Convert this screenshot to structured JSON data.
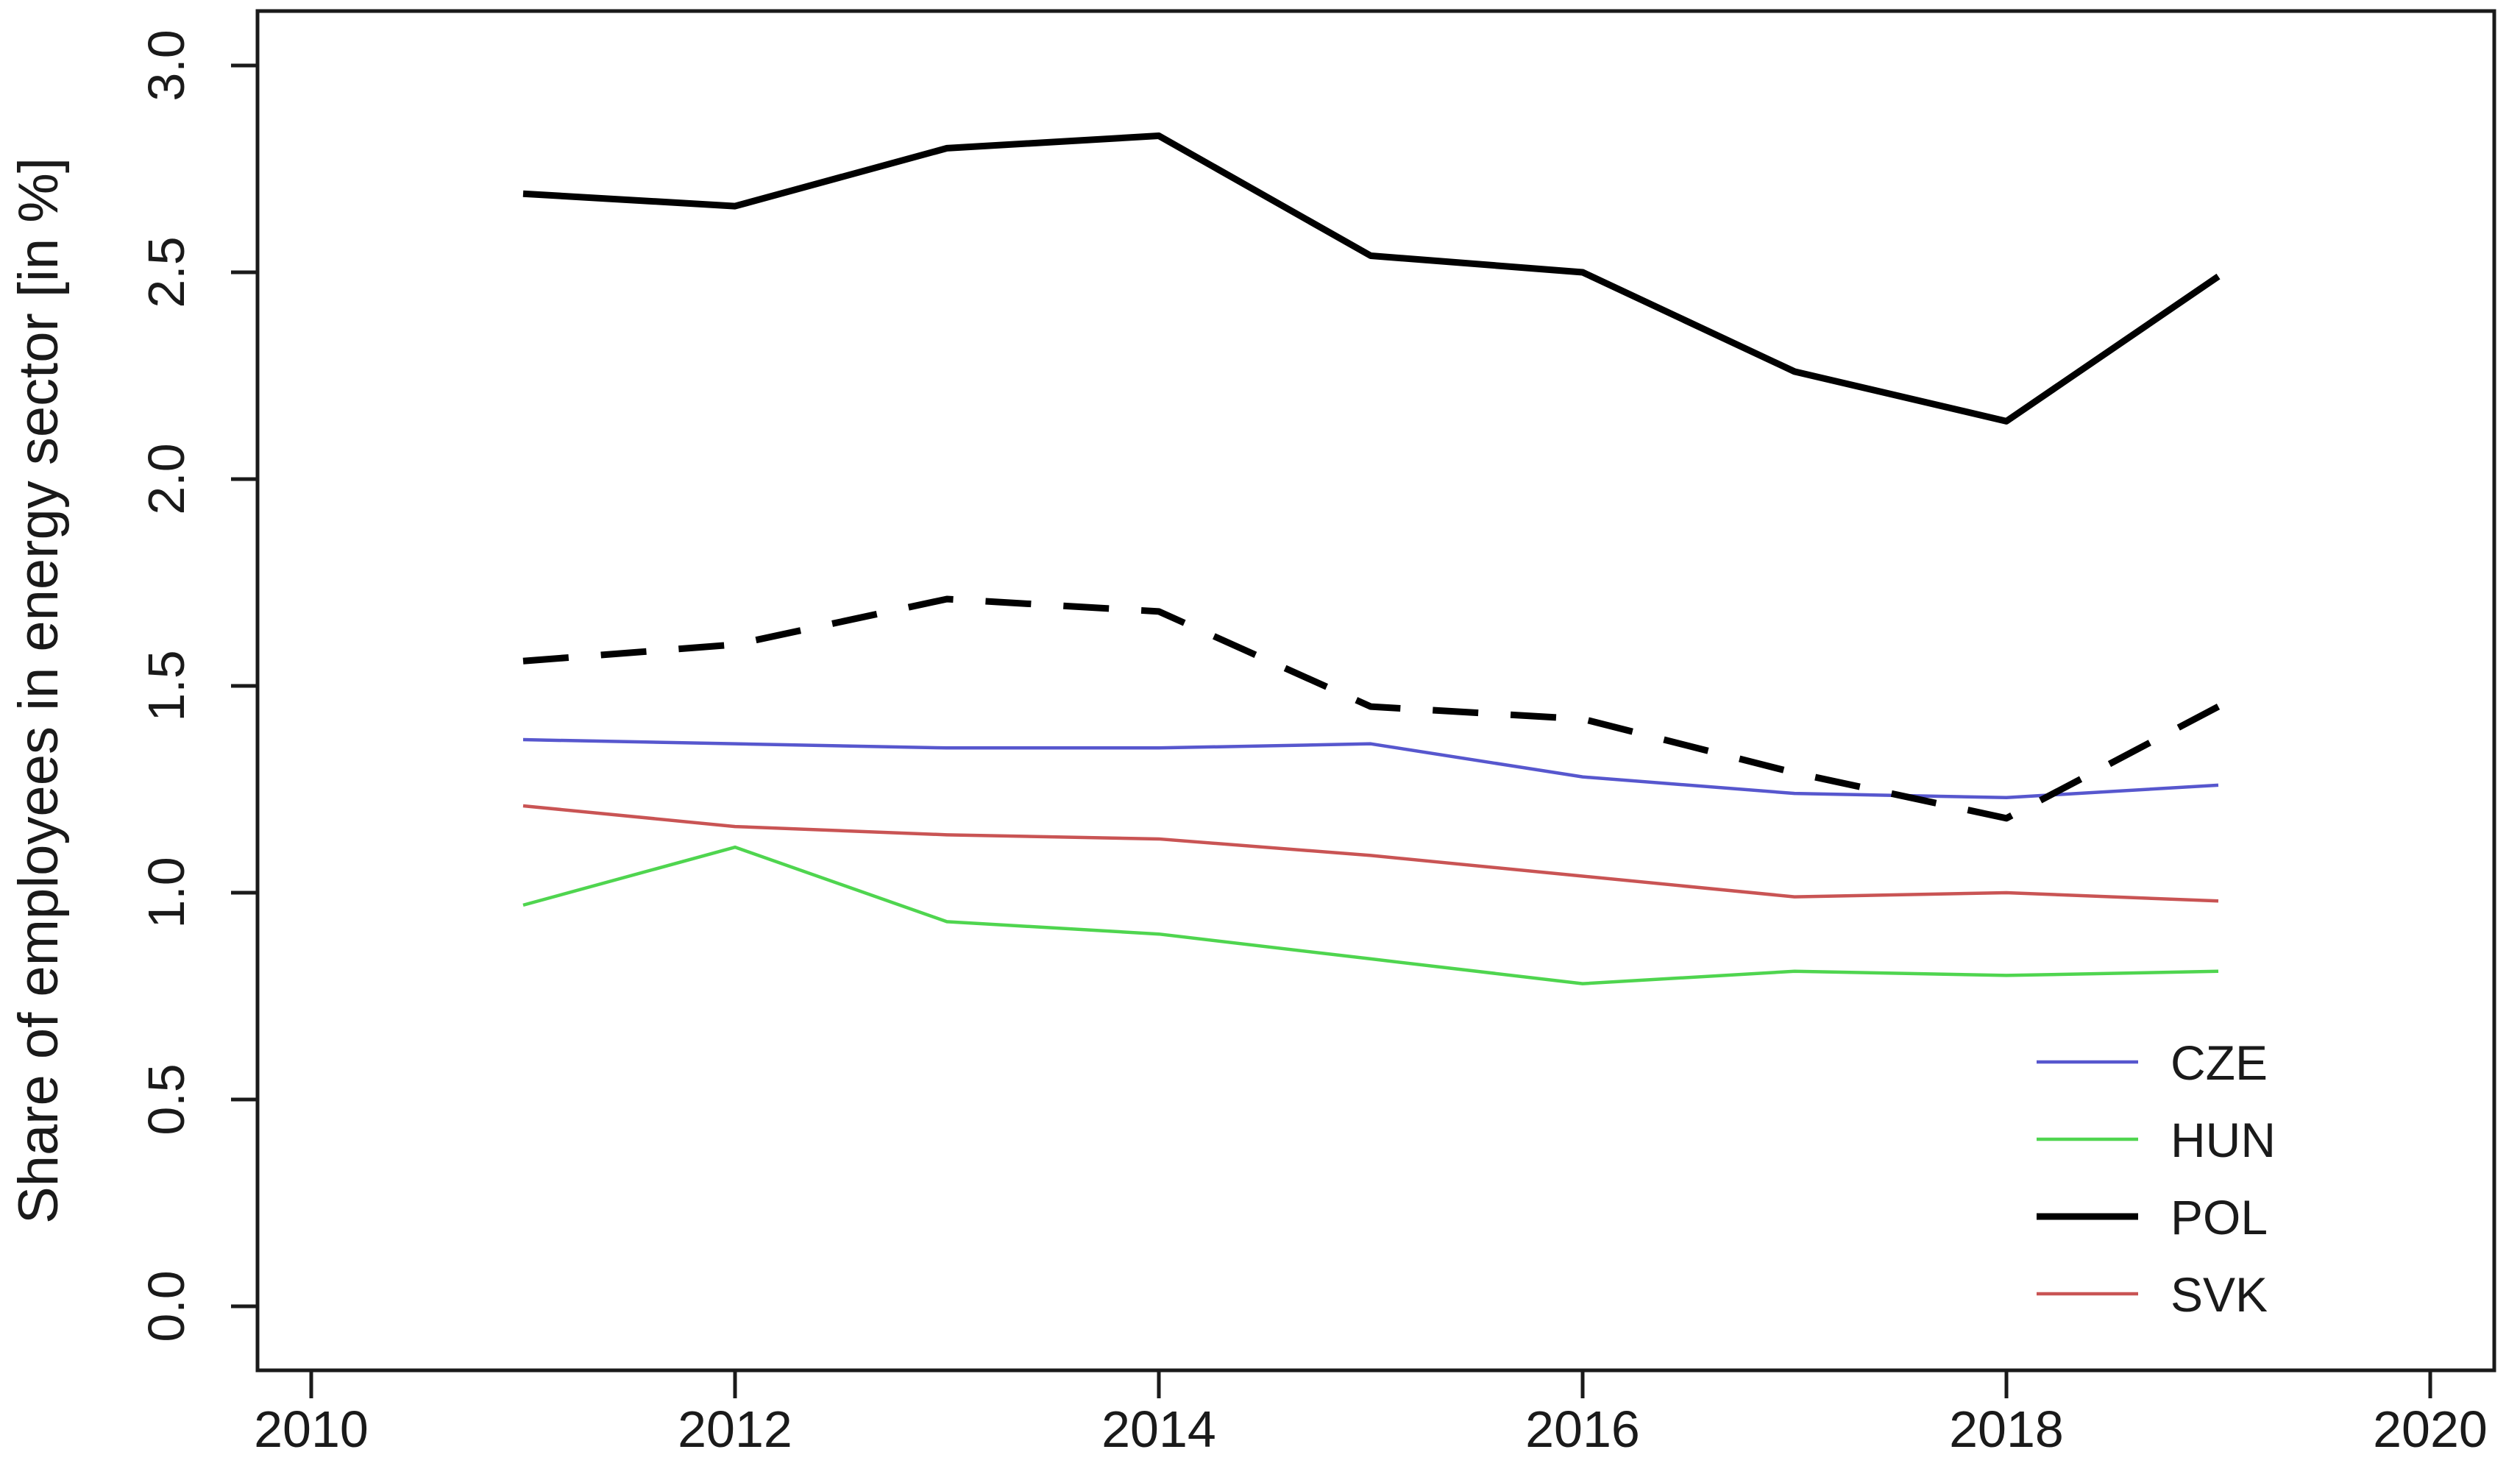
{
  "chart_data": {
    "type": "line",
    "title": "",
    "xlabel": "",
    "ylabel": "Share of employees in energy sector [in %]",
    "x_tick_labels": [
      "2010",
      "2012",
      "2014",
      "2016",
      "2018",
      "2020"
    ],
    "x_tick_values": [
      2010,
      2012,
      2014,
      2016,
      2018,
      2020
    ],
    "y_tick_labels": [
      "0.0",
      "0.5",
      "1.0",
      "1.5",
      "2.0",
      "2.5",
      "3.0"
    ],
    "y_tick_values": [
      0.0,
      0.5,
      1.0,
      1.5,
      2.0,
      2.5,
      3.0
    ],
    "xlim": [
      2009.75,
      2020.3
    ],
    "ylim": [
      -0.15,
      3.13
    ],
    "grid": false,
    "x": [
      2011,
      2012,
      2013,
      2014,
      2015,
      2016,
      2017,
      2018,
      2019
    ],
    "series": [
      {
        "id": "CZE",
        "legend": "CZE",
        "color": "#5757CE",
        "stroke_width": 4.5,
        "dash": "",
        "values": [
          1.37,
          1.36,
          1.35,
          1.35,
          1.36,
          1.28,
          1.24,
          1.23,
          1.26
        ]
      },
      {
        "id": "HUN",
        "legend": "HUN",
        "color": "#4FD54F",
        "stroke_width": 4.5,
        "dash": "",
        "values": [
          0.97,
          1.11,
          0.93,
          0.9,
          0.84,
          0.78,
          0.81,
          0.8,
          0.81
        ]
      },
      {
        "id": "POL",
        "legend": "POL",
        "color": "#000000",
        "stroke_width": 9,
        "dash": "",
        "values": [
          2.69,
          2.66,
          2.8,
          2.83,
          2.54,
          2.5,
          2.26,
          2.14,
          2.49
        ]
      },
      {
        "id": "SVK",
        "legend": "SVK",
        "color": "#C95454",
        "stroke_width": 4.5,
        "dash": "",
        "values": [
          1.21,
          1.16,
          1.14,
          1.13,
          1.09,
          1.04,
          0.99,
          1.0,
          0.98
        ]
      },
      {
        "id": "unlabeled-dashed-black",
        "legend": null,
        "color": "#000000",
        "stroke_width": 9,
        "dash": "62 44",
        "values": [
          1.56,
          1.6,
          1.71,
          1.68,
          1.45,
          1.42,
          1.29,
          1.18,
          1.45
        ]
      }
    ],
    "legend": {
      "position": "bottom-right",
      "entries": [
        "CZE",
        "HUN",
        "POL",
        "SVK"
      ]
    }
  }
}
